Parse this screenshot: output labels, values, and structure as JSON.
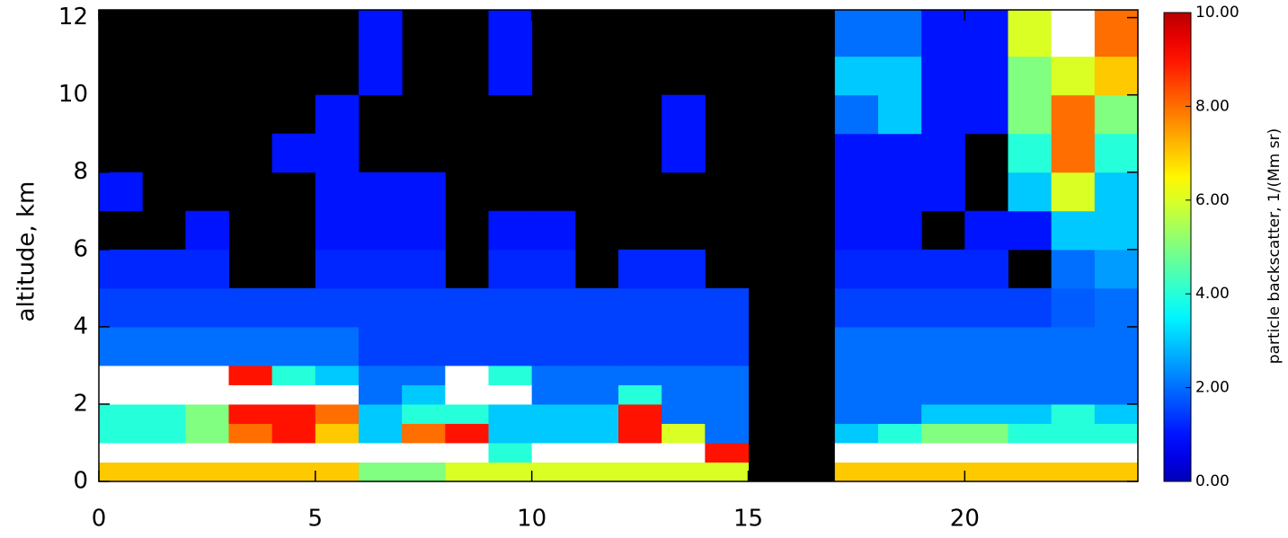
{
  "chart_data": {
    "type": "heatmap",
    "ylabel": "altitude, km",
    "colorbar_label": "particle backscatter, 1/(Mm sr)",
    "x_edges": [
      0,
      1,
      2,
      3,
      4,
      5,
      6,
      7,
      8,
      9,
      10,
      11,
      12,
      13,
      14,
      15,
      16,
      17,
      18,
      19,
      20,
      21,
      22,
      23,
      24
    ],
    "y_edges": [
      0,
      0.5,
      1,
      1.5,
      2,
      2.5,
      3,
      4,
      5,
      6,
      7,
      8,
      9,
      10,
      11,
      12.2
    ],
    "z": [
      [
        7,
        7,
        7,
        7,
        7,
        7,
        5,
        5,
        6,
        6,
        6,
        6,
        6,
        6,
        6,
        null,
        null,
        7,
        7,
        7,
        7,
        7,
        7,
        7
      ],
      [
        11,
        11,
        11,
        11,
        11,
        11,
        11,
        11,
        11,
        4,
        11,
        11,
        11,
        11,
        9,
        null,
        null,
        11,
        11,
        11,
        11,
        11,
        11,
        11
      ],
      [
        4,
        4,
        5,
        8,
        9,
        7,
        3,
        8,
        9,
        3,
        3,
        3,
        9,
        6,
        2,
        null,
        null,
        3,
        4,
        5,
        5,
        4,
        4,
        4
      ],
      [
        4,
        4,
        5,
        9,
        9,
        8,
        3,
        4,
        4,
        3,
        3,
        3,
        9,
        2,
        2,
        null,
        null,
        2,
        2,
        3,
        3,
        3,
        4,
        3
      ],
      [
        11,
        11,
        11,
        11,
        11,
        11,
        2,
        3,
        11,
        11,
        2,
        2,
        4,
        2,
        2,
        null,
        null,
        2,
        2,
        2,
        2,
        2,
        2,
        2
      ],
      [
        11,
        11,
        11,
        9,
        4,
        3,
        2,
        2,
        11,
        4,
        2,
        2,
        2,
        2,
        2,
        null,
        null,
        2,
        2,
        2,
        2,
        2,
        2,
        2
      ],
      [
        2,
        2,
        2,
        2,
        2,
        2,
        1.5,
        1.5,
        1.5,
        1.5,
        1.5,
        1.5,
        1.5,
        1.5,
        1.5,
        null,
        null,
        2,
        2,
        2,
        2,
        2,
        2,
        2
      ],
      [
        1.5,
        1.5,
        1.5,
        1.5,
        1.5,
        1.5,
        1.5,
        1.5,
        1.5,
        1.5,
        1.5,
        1.5,
        1.5,
        1.5,
        1.5,
        null,
        null,
        1.5,
        1.5,
        1.5,
        1.5,
        1.5,
        1.8,
        2
      ],
      [
        1.2,
        1.2,
        1.2,
        null,
        null,
        1.2,
        1.2,
        1.2,
        null,
        1.2,
        1.2,
        null,
        1.2,
        1.2,
        null,
        null,
        null,
        1.2,
        1.2,
        1.2,
        1.2,
        null,
        2,
        2.5
      ],
      [
        null,
        null,
        1,
        null,
        null,
        1,
        1,
        1,
        null,
        1,
        1,
        null,
        null,
        null,
        null,
        null,
        null,
        1,
        1,
        null,
        1,
        1,
        3,
        3
      ],
      [
        1,
        null,
        null,
        null,
        null,
        1,
        1,
        1,
        null,
        null,
        null,
        null,
        null,
        null,
        null,
        null,
        null,
        1,
        1,
        1,
        null,
        3,
        6,
        3
      ],
      [
        null,
        null,
        null,
        null,
        1,
        1,
        null,
        null,
        null,
        null,
        null,
        null,
        null,
        1,
        null,
        null,
        null,
        1,
        1,
        1,
        null,
        4,
        8,
        4
      ],
      [
        null,
        null,
        null,
        null,
        null,
        1,
        null,
        null,
        null,
        null,
        null,
        null,
        null,
        1,
        null,
        null,
        null,
        2,
        3,
        1,
        1,
        5,
        8,
        5
      ],
      [
        null,
        null,
        null,
        null,
        null,
        null,
        1,
        null,
        null,
        1,
        null,
        null,
        null,
        null,
        null,
        null,
        null,
        3,
        3,
        1,
        1,
        5,
        6,
        7
      ],
      [
        null,
        null,
        null,
        null,
        null,
        null,
        1,
        null,
        null,
        1,
        null,
        null,
        null,
        null,
        null,
        null,
        null,
        2,
        2,
        1,
        1,
        6,
        11,
        8
      ]
    ],
    "xlim": [
      0,
      24
    ],
    "xticks": [
      0,
      5,
      10,
      15,
      20
    ],
    "ylim": [
      0,
      12.2
    ],
    "yticks": [
      0,
      2,
      4,
      6,
      8,
      10,
      12
    ],
    "clim": [
      0,
      10
    ],
    "cticks": [
      {
        "value": 0,
        "label": "0.00"
      },
      {
        "value": 2,
        "label": "2.00"
      },
      {
        "value": 4,
        "label": "4.00"
      },
      {
        "value": 6,
        "label": "6.00"
      },
      {
        "value": 8,
        "label": "8.00"
      },
      {
        "value": 10,
        "label": "10.00"
      }
    ]
  }
}
